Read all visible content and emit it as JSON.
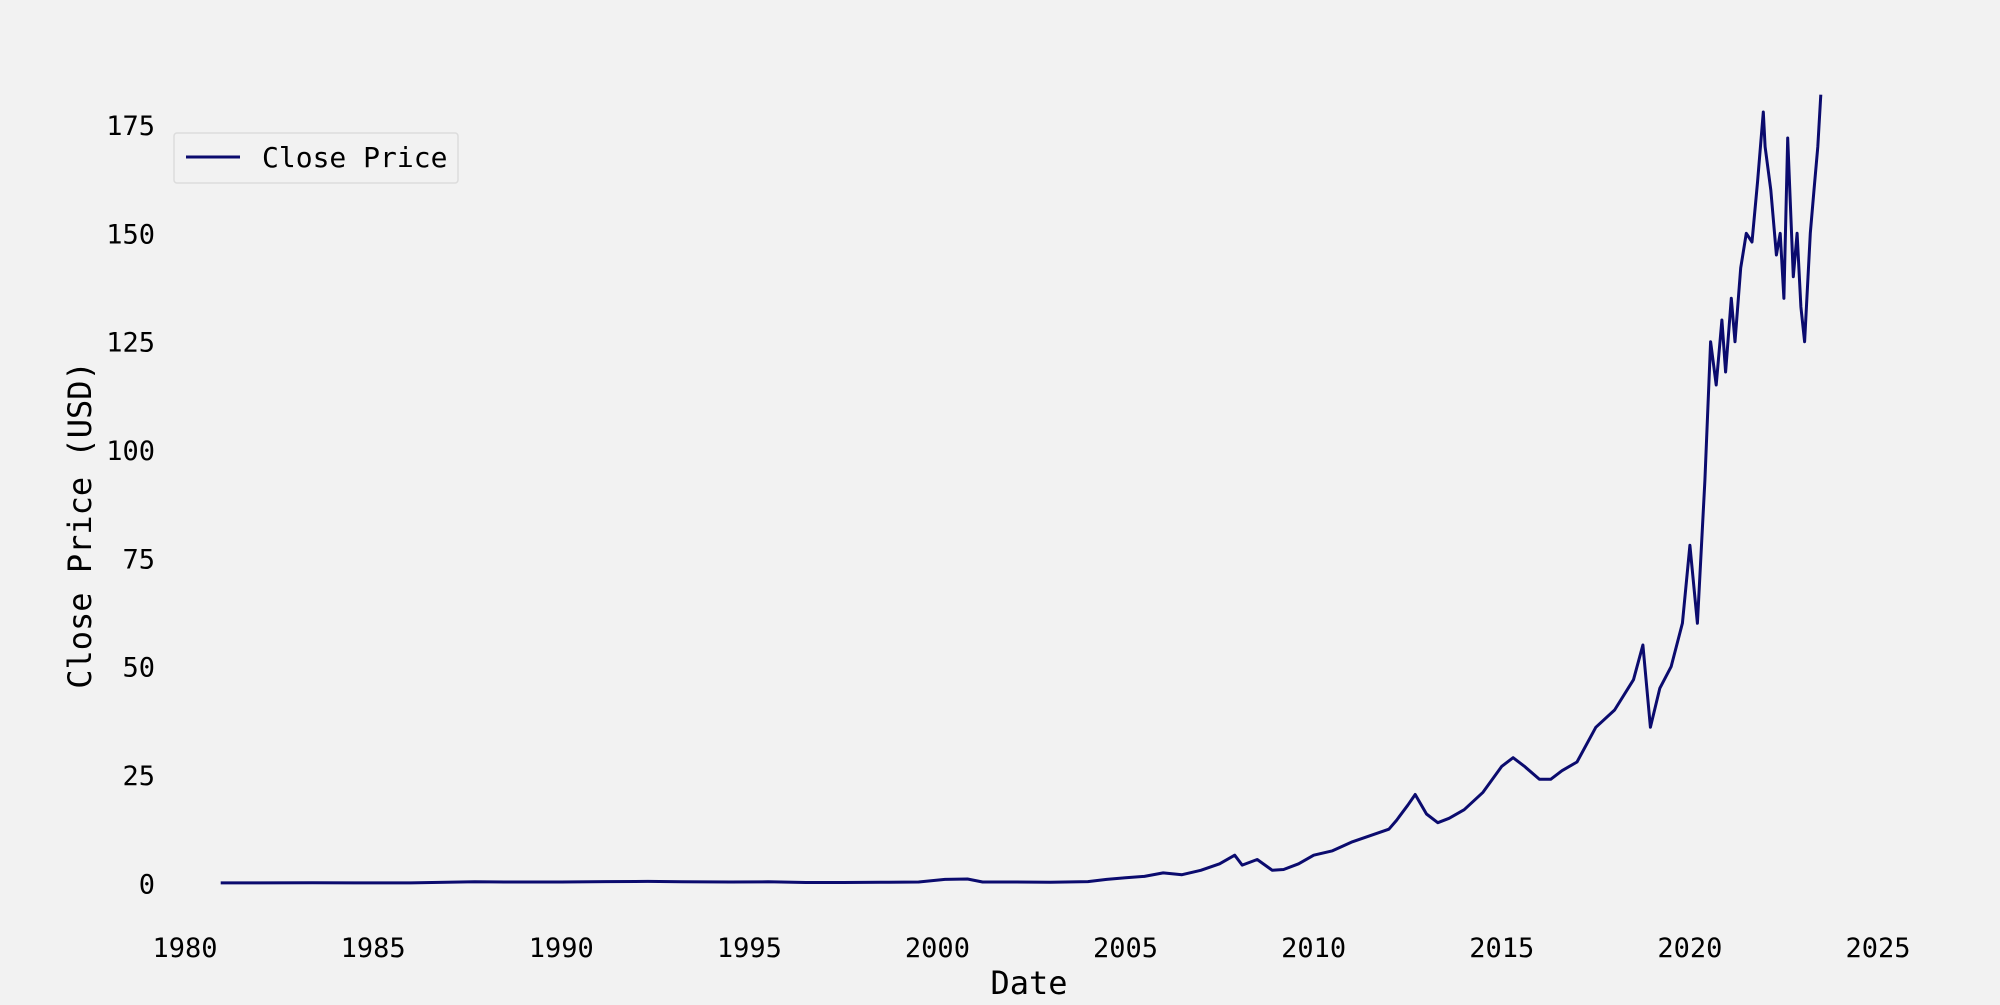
{
  "chart_data": {
    "type": "line",
    "title": "",
    "xlabel": "Date",
    "ylabel": "Close Price (USD)",
    "xlim": [
      1980,
      2025
    ],
    "ylim": [
      -8,
      190
    ],
    "x_ticks": [
      "1980",
      "1985",
      "1990",
      "1995",
      "2000",
      "2005",
      "2010",
      "2015",
      "2020",
      "2025"
    ],
    "y_ticks": [
      "0",
      "25",
      "50",
      "75",
      "100",
      "125",
      "150",
      "175"
    ],
    "grid": false,
    "legend_position": "top-left",
    "series": [
      {
        "name": "Close Price",
        "color": "#0b0b6e",
        "x": [
          1980.95,
          1982.0,
          1983.4,
          1984.5,
          1986.0,
          1987.7,
          1988.5,
          1990.0,
          1991.2,
          1992.3,
          1993.2,
          1994.5,
          1995.5,
          1996.5,
          1997.5,
          1998.5,
          1999.5,
          2000.2,
          2000.8,
          2001.2,
          2002.0,
          2003.0,
          2004.0,
          2004.5,
          2005.0,
          2005.5,
          2006.0,
          2006.5,
          2007.0,
          2007.5,
          2007.9,
          2008.1,
          2008.5,
          2008.9,
          2009.2,
          2009.6,
          2010.0,
          2010.5,
          2011.0,
          2011.5,
          2012.0,
          2012.2,
          2012.5,
          2012.7,
          2013.0,
          2013.3,
          2013.6,
          2014.0,
          2014.5,
          2015.0,
          2015.3,
          2015.6,
          2016.0,
          2016.3,
          2016.6,
          2017.0,
          2017.5,
          2018.0,
          2018.5,
          2018.75,
          2018.95,
          2019.2,
          2019.5,
          2019.8,
          2020.0,
          2020.2,
          2020.4,
          2020.55,
          2020.7,
          2020.85,
          2020.95,
          2021.1,
          2021.2,
          2021.35,
          2021.5,
          2021.65,
          2021.8,
          2021.95,
          2022.0,
          2022.15,
          2022.3,
          2022.4,
          2022.5,
          2022.6,
          2022.75,
          2022.85,
          2022.95,
          2023.05,
          2023.2,
          2023.3,
          2023.4,
          2023.48
        ],
        "y": [
          0.1,
          0.1,
          0.12,
          0.11,
          0.1,
          0.35,
          0.3,
          0.3,
          0.4,
          0.45,
          0.35,
          0.3,
          0.35,
          0.2,
          0.2,
          0.25,
          0.3,
          0.9,
          1.0,
          0.3,
          0.3,
          0.25,
          0.4,
          0.9,
          1.3,
          1.6,
          2.4,
          2.0,
          3.0,
          4.5,
          6.5,
          4.2,
          5.5,
          3.0,
          3.2,
          4.5,
          6.5,
          7.5,
          9.5,
          11.0,
          12.5,
          14.5,
          18.0,
          20.5,
          16.0,
          14.0,
          15.0,
          17.0,
          21.0,
          27.0,
          29.0,
          27.0,
          24.0,
          24.0,
          26.0,
          28.0,
          36.0,
          40.0,
          47.0,
          55.0,
          36.0,
          45.0,
          50.0,
          60.0,
          78.0,
          60.0,
          93.0,
          125.0,
          115.0,
          130.0,
          118.0,
          135.0,
          125.0,
          142.0,
          150.0,
          148.0,
          162.0,
          178.0,
          170.0,
          160.0,
          145.0,
          150.0,
          135.0,
          172.0,
          140.0,
          150.0,
          133.0,
          125.0,
          150.0,
          160.0,
          170.0,
          182.0
        ]
      }
    ]
  }
}
